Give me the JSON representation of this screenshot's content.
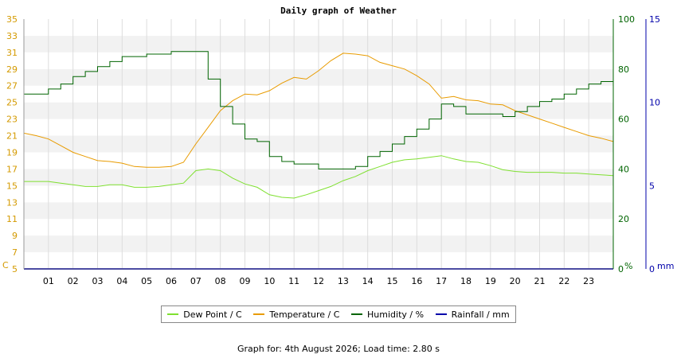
{
  "chart_data": {
    "type": "line",
    "title": "Daily graph of Weather",
    "x_ticks": [
      "01",
      "02",
      "03",
      "04",
      "05",
      "06",
      "07",
      "08",
      "09",
      "10",
      "11",
      "12",
      "13",
      "14",
      "15",
      "16",
      "17",
      "18",
      "19",
      "20",
      "21",
      "22",
      "23"
    ],
    "xlim": [
      0,
      24
    ],
    "y_axes": {
      "left": {
        "unit_label": "C",
        "ylim": [
          5,
          35
        ],
        "ticks": [
          5,
          7,
          9,
          11,
          13,
          15,
          17,
          19,
          21,
          23,
          25,
          27,
          29,
          31,
          33,
          35
        ],
        "color": "#d49a00"
      },
      "right1": {
        "unit_label": "%",
        "ylim": [
          0,
          100
        ],
        "ticks": [
          0,
          20,
          40,
          60,
          80,
          100
        ],
        "color": "#006400"
      },
      "right2": {
        "unit_label": "mm",
        "ylim": [
          0,
          15
        ],
        "ticks": [
          0,
          5,
          10,
          15
        ],
        "color": "#0000aa"
      }
    },
    "grid": true,
    "legend_position": "bottom",
    "series": [
      {
        "name": "Dew Point / C",
        "axis": "left",
        "color": "#7fe030",
        "step": false,
        "x": [
          0,
          0.5,
          1,
          1.5,
          2,
          2.5,
          3,
          3.5,
          4,
          4.5,
          5,
          5.5,
          6,
          6.5,
          7,
          7.5,
          8,
          8.5,
          9,
          9.5,
          10,
          10.5,
          11,
          11.5,
          12,
          12.5,
          13,
          13.5,
          14,
          14.5,
          15,
          15.5,
          16,
          16.5,
          17,
          17.5,
          18,
          18.5,
          19,
          19.5,
          20,
          20.5,
          21,
          21.5,
          22,
          22.5,
          23,
          23.5,
          24
        ],
        "y": [
          15.5,
          15.5,
          15.5,
          15.3,
          15.1,
          14.9,
          14.9,
          15.1,
          15.1,
          14.8,
          14.8,
          14.9,
          15.1,
          15.3,
          16.8,
          17.0,
          16.8,
          15.9,
          15.2,
          14.8,
          13.9,
          13.6,
          13.5,
          13.9,
          14.4,
          14.9,
          15.6,
          16.1,
          16.8,
          17.3,
          17.8,
          18.1,
          18.2,
          18.4,
          18.6,
          18.2,
          17.9,
          17.8,
          17.4,
          16.9,
          16.7,
          16.6,
          16.6,
          16.6,
          16.5,
          16.5,
          16.4,
          16.3,
          16.2
        ]
      },
      {
        "name": "Temperature / C",
        "axis": "left",
        "color": "#e89b00",
        "step": false,
        "x": [
          0,
          0.5,
          1,
          1.5,
          2,
          2.5,
          3,
          3.5,
          4,
          4.5,
          5,
          5.5,
          6,
          6.5,
          7,
          7.5,
          8,
          8.5,
          9,
          9.5,
          10,
          10.5,
          11,
          11.5,
          12,
          12.5,
          13,
          13.5,
          14,
          14.5,
          15,
          15.5,
          16,
          16.5,
          17,
          17.5,
          18,
          18.5,
          19,
          19.5,
          20,
          20.5,
          21,
          21.5,
          22,
          22.5,
          23,
          23.5,
          24
        ],
        "y": [
          21.3,
          21.0,
          20.6,
          19.8,
          19.0,
          18.5,
          18.0,
          17.9,
          17.7,
          17.3,
          17.2,
          17.2,
          17.3,
          17.8,
          20.0,
          22.0,
          24.0,
          25.2,
          26.0,
          25.9,
          26.4,
          27.3,
          28.0,
          27.8,
          28.8,
          30.0,
          30.9,
          30.8,
          30.6,
          29.8,
          29.4,
          29.0,
          28.2,
          27.2,
          25.5,
          25.7,
          25.3,
          25.2,
          24.8,
          24.7,
          24.0,
          23.5,
          23.0,
          22.5,
          22.0,
          21.5,
          21.0,
          20.7,
          20.3
        ]
      },
      {
        "name": "Humidity / %",
        "axis": "right1",
        "color": "#006400",
        "step": true,
        "x": [
          0,
          0.5,
          1,
          1.5,
          2,
          2.5,
          3,
          3.5,
          4,
          4.5,
          5,
          5.5,
          6,
          6.5,
          7,
          7.5,
          8,
          8.5,
          9,
          9.5,
          10,
          10.5,
          11,
          11.5,
          12,
          12.5,
          13,
          13.5,
          14,
          14.5,
          15,
          15.5,
          16,
          16.5,
          17,
          17.5,
          18,
          18.5,
          19,
          19.5,
          20,
          20.5,
          21,
          21.5,
          22,
          22.5,
          23,
          23.5,
          24
        ],
        "y": [
          70,
          70,
          72,
          74,
          77,
          79,
          81,
          83,
          85,
          85,
          86,
          86,
          87,
          87,
          87,
          76,
          65,
          58,
          52,
          51,
          45,
          43,
          42,
          42,
          40,
          40,
          40,
          41,
          45,
          47,
          50,
          53,
          56,
          60,
          66,
          65,
          62,
          62,
          62,
          61,
          63,
          65,
          67,
          68,
          70,
          72,
          74,
          75,
          77
        ]
      },
      {
        "name": "Rainfall / mm",
        "axis": "right2",
        "color": "#0000aa",
        "step": false,
        "x": [
          0,
          24
        ],
        "y": [
          0,
          0
        ]
      }
    ]
  },
  "footer": "Graph for: 4th August 2026; Load time: 2.80 s"
}
